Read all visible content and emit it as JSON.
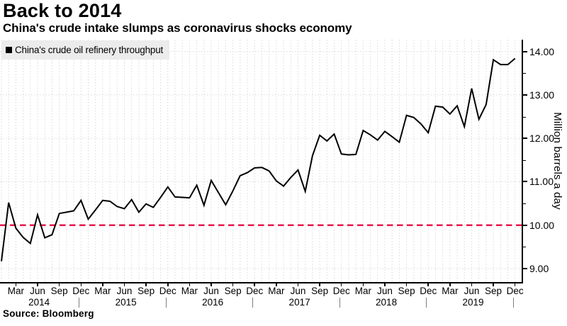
{
  "header": {
    "title": "Back to 2014",
    "subtitle": "China's crude intake slumps as coronavirus shocks economy"
  },
  "legend": {
    "label": "China's crude oil refinery throughput"
  },
  "source": "Source: Bloomberg",
  "colors": {
    "line": "#000000",
    "reference_red": "#e8164b",
    "grid": "#d9d9d9",
    "legend_background": "#ececec"
  },
  "chart_data": {
    "type": "line",
    "title": "Back to 2014",
    "subtitle": "China's crude intake slumps as coronavirus shocks economy",
    "xlabel": "",
    "ylabel": "Million barrels a day",
    "ylim": [
      8.7,
      14.3
    ],
    "grid": true,
    "legend_position": "top-left",
    "x_axis": {
      "start": "2014-01",
      "frequency": "monthly",
      "years": [
        "2014",
        "2015",
        "2016",
        "2017",
        "2018",
        "2019"
      ],
      "month_tick_labels": [
        "Mar",
        "Jun",
        "Sep",
        "Dec"
      ],
      "month_tick_indices": [
        2,
        5,
        8,
        11
      ]
    },
    "y_axis": {
      "side": "right",
      "tick_values": [
        9,
        10,
        11,
        12,
        13,
        14
      ],
      "tick_labels": [
        "9.00",
        "10.00",
        "11.00",
        "12.00",
        "13.00",
        "14.00"
      ],
      "minor_tick_values": [
        9.5,
        10.5,
        11.5,
        12.5,
        13.5
      ]
    },
    "reference_line": {
      "value": 10.0,
      "color": "#e8164b",
      "style": "dashed"
    },
    "series": [
      {
        "name": "China's crude oil refinery throughput",
        "color": "#000000",
        "values": [
          9.17,
          10.52,
          9.93,
          9.72,
          9.58,
          10.24,
          9.71,
          9.78,
          10.27,
          10.3,
          10.33,
          10.57,
          10.14,
          10.35,
          10.57,
          10.55,
          10.43,
          10.38,
          10.59,
          10.3,
          10.49,
          10.41,
          10.64,
          10.88,
          10.65,
          10.64,
          10.63,
          10.92,
          10.46,
          11.03,
          10.75,
          10.47,
          10.79,
          11.14,
          11.21,
          11.32,
          11.33,
          11.25,
          11.02,
          10.9,
          11.1,
          11.27,
          10.78,
          11.6,
          12.07,
          11.94,
          12.1,
          11.64,
          11.62,
          11.63,
          12.18,
          12.08,
          11.96,
          12.16,
          12.04,
          11.91,
          12.53,
          12.48,
          12.33,
          12.13,
          12.74,
          12.72,
          12.56,
          12.75,
          12.27,
          13.15,
          12.44,
          12.78,
          13.81,
          13.7,
          13.7,
          13.84
        ]
      }
    ]
  }
}
